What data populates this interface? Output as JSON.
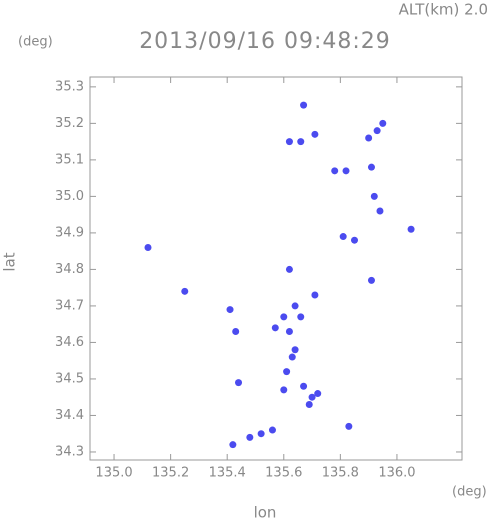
{
  "chart_data": {
    "type": "scatter",
    "annotation": "ALT(km)  2.0",
    "title": "2013/09/16 09:48:29",
    "y_unit": "(deg)",
    "x_unit": "(deg)",
    "x_label": "lon",
    "y_label": "lat",
    "color": "#4b4bef",
    "grid": false,
    "xlim": [
      134.915,
      136.23
    ],
    "ylim": [
      34.278,
      35.327
    ],
    "xticks": [
      {
        "value": 135,
        "label": "135.0"
      },
      135.2,
      135.4,
      135.6,
      135.8,
      {
        "value": 136,
        "label": "136.0"
      }
    ],
    "yticks": [
      34.3,
      34.4,
      34.5,
      34.6,
      34.7,
      34.8,
      34.9,
      {
        "value": 35,
        "label": "35.0"
      },
      35.1,
      35.2,
      35.3
    ],
    "x": [
      135.67,
      135.71,
      135.62,
      135.66,
      135.78,
      135.82,
      135.9,
      135.93,
      135.95,
      135.91,
      135.92,
      135.94,
      136.05,
      135.81,
      135.85,
      135.91,
      135.12,
      135.25,
      135.62,
      135.64,
      135.71,
      135.6,
      135.66,
      135.57,
      135.62,
      135.41,
      135.43,
      135.63,
      135.61,
      135.6,
      135.67,
      135.72,
      135.44,
      135.7,
      135.69,
      135.83,
      135.42,
      135.48,
      135.52,
      135.56,
      135.64
    ],
    "values": [
      35.25,
      35.17,
      35.15,
      35.15,
      35.07,
      35.07,
      35.16,
      35.18,
      35.2,
      35.08,
      35.0,
      34.96,
      34.91,
      34.89,
      34.88,
      34.77,
      34.86,
      34.74,
      34.8,
      34.7,
      34.73,
      34.67,
      34.67,
      34.64,
      34.63,
      34.69,
      34.63,
      34.56,
      34.52,
      34.47,
      34.48,
      34.46,
      34.49,
      34.45,
      34.43,
      34.37,
      34.32,
      34.34,
      34.35,
      34.36,
      34.58
    ]
  }
}
